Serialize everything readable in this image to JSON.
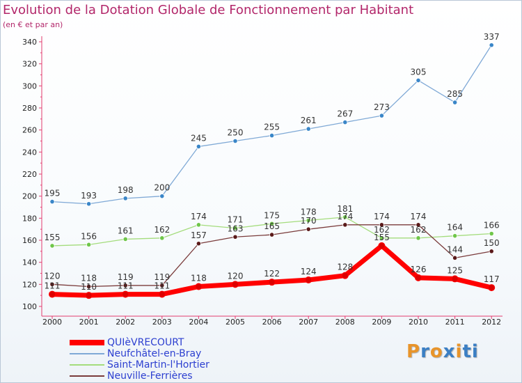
{
  "title": "Evolution de la Dotation Globale de Fonctionnement par Habitant",
  "subtitle": "(en € et par an)",
  "chart_data": {
    "type": "line",
    "title": "Evolution de la Dotation Globale de Fonctionnement par Habitant",
    "subtitle": "(en € et par an)",
    "xlabel": "",
    "ylabel": "",
    "x": [
      "2000",
      "2001",
      "2002",
      "2003",
      "2004",
      "2005",
      "2006",
      "2007",
      "2008",
      "2009",
      "2010",
      "2011",
      "2012"
    ],
    "ylim": [
      100,
      340
    ],
    "yticks": [
      100,
      120,
      140,
      160,
      180,
      200,
      220,
      240,
      260,
      280,
      300,
      320,
      340
    ],
    "ytick_labels": [
      "100",
      "120",
      "140",
      "160",
      "180",
      "200",
      "220",
      "240",
      "260",
      "280",
      "300",
      "320",
      "340"
    ],
    "grid": false,
    "legend_position": "bottom-left",
    "series": [
      {
        "name": "QUIèVRECOURT",
        "color": "#ff0000",
        "marker": "#dd0000",
        "values": [
          111,
          110,
          111,
          111,
          118,
          120,
          122,
          124,
          128,
          155,
          126,
          125,
          117
        ],
        "labels": [
          "111",
          "110",
          "111",
          "111",
          "118",
          "120",
          "122",
          "124",
          "128",
          "155",
          "126",
          "125",
          "117"
        ]
      },
      {
        "name": "Neufchâtel-en-Bray",
        "color": "#7fa9d6",
        "marker": "#3a86c8",
        "values": [
          195,
          193,
          198,
          200,
          245,
          250,
          255,
          261,
          267,
          273,
          305,
          285,
          337
        ],
        "labels": [
          "195",
          "193",
          "198",
          "200",
          "245",
          "250",
          "255",
          "261",
          "267",
          "273",
          "305",
          "285",
          "337"
        ]
      },
      {
        "name": "Saint-Martin-l'Hortier",
        "color": "#a4dc7c",
        "marker": "#6fc64a",
        "values": [
          155,
          156,
          161,
          162,
          174,
          171,
          175,
          178,
          181,
          162,
          162,
          164,
          166
        ],
        "labels": [
          "155",
          "156",
          "161",
          "162",
          "174",
          "171",
          "175",
          "178",
          "181",
          "162",
          "162",
          "164",
          "166"
        ]
      },
      {
        "name": "Neuville-Ferrières",
        "color": "#7a3b3b",
        "marker": "#5a1a1a",
        "values": [
          120,
          118,
          119,
          119,
          157,
          163,
          165,
          170,
          174,
          174,
          174,
          144,
          150
        ],
        "labels": [
          "120",
          "118",
          "119",
          "119",
          "157",
          "163",
          "165",
          "170",
          "174",
          "174",
          "174",
          "144",
          "150"
        ]
      }
    ]
  },
  "logo": {
    "text": "Proxiti",
    "colors": [
      "#e8942a",
      "#3b7fc4",
      "#e8942a",
      "#3b7fc4",
      "#e8942a",
      "#3b7fc4",
      "#3b7fc4"
    ]
  }
}
